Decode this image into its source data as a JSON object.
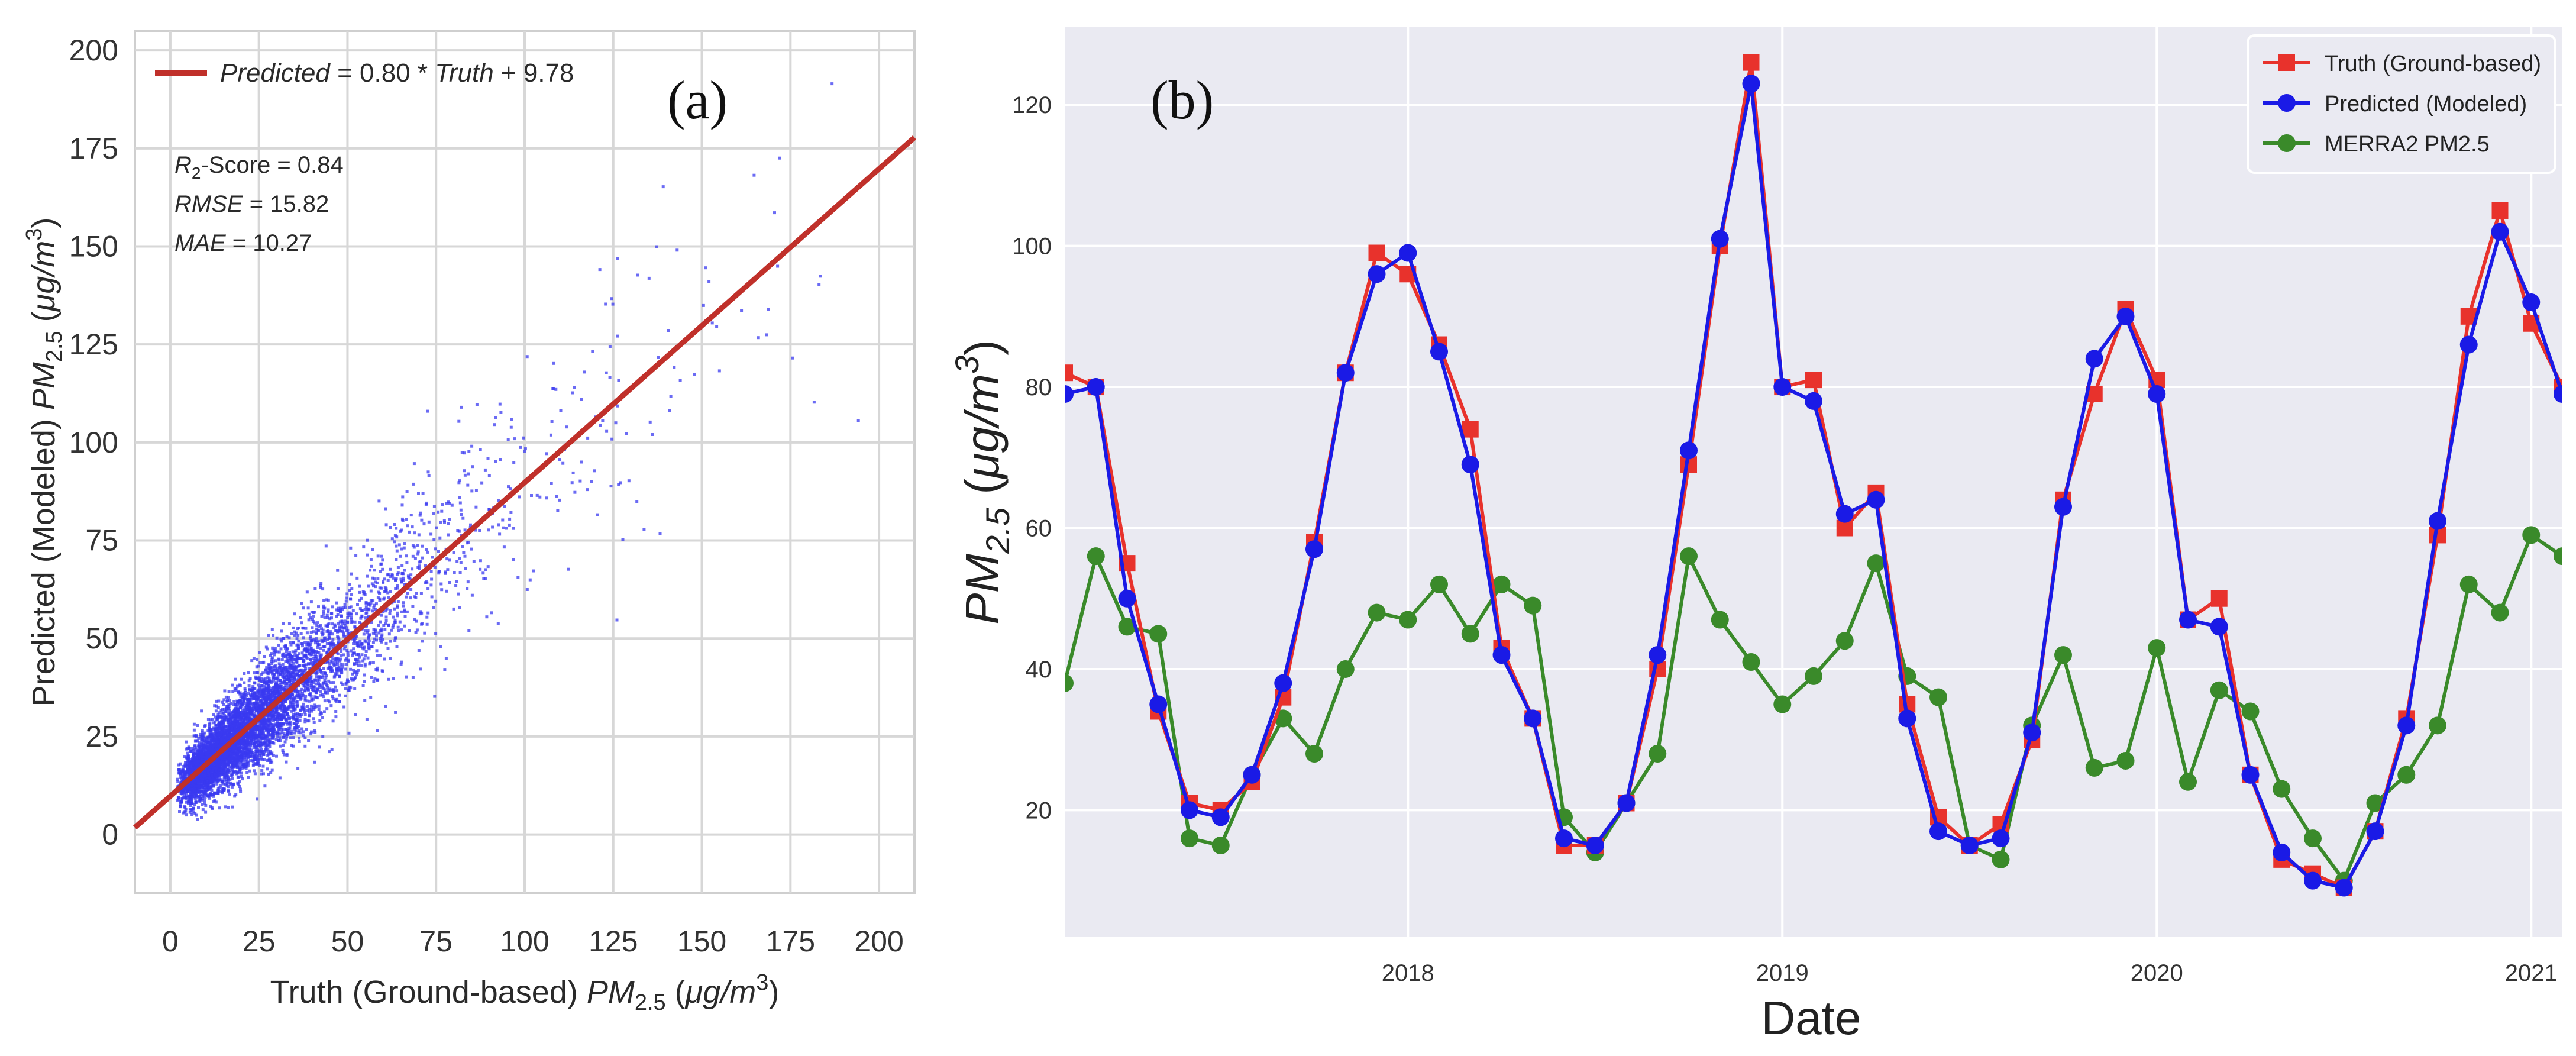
{
  "chart_data": [
    {
      "type": "scatter",
      "panel_label": "(a)",
      "title": "",
      "xlabel": "Truth (Ground-based) PM2.5 (μg/m3)",
      "xlabel_parts": {
        "pre": "Truth (Ground-based) ",
        "var": "PM",
        "sub": "2.5",
        "unit_pre": " (",
        "mu": "μ",
        "unit": "g/m",
        "sup": "3",
        "close": ")"
      },
      "ylabel": "Predicted (Modeled) PM2.5 (μg/m3)",
      "ylabel_parts": {
        "pre": "Predicted (Modeled) ",
        "var": "PM",
        "sub": "2.5",
        "unit_pre": " (",
        "mu": "μ",
        "unit": "g/m",
        "sup": "3",
        "close": ")"
      },
      "xlim": [
        -10,
        210
      ],
      "ylim": [
        -15,
        205
      ],
      "xticks": [
        0,
        25,
        50,
        75,
        100,
        125,
        150,
        175,
        200
      ],
      "yticks": [
        0,
        25,
        50,
        75,
        100,
        125,
        150,
        175,
        200
      ],
      "grid": true,
      "legend_position": "top-left",
      "colors": {
        "points": "#3a3af0",
        "fit": "#c0302a",
        "grid": "#d7d7d7",
        "axis": "#333333"
      },
      "fit_line": {
        "slope": 0.8,
        "intercept": 9.78
      },
      "legend": {
        "pre": "Predicted",
        "mid": " = 0.80 * ",
        "truth": "Truth",
        "post": " + 9.78"
      },
      "stats": [
        {
          "name": "R",
          "sub": "2",
          "rest": "-Score",
          "value": " = 0.84"
        },
        {
          "name": "RMSE",
          "sub": "",
          "rest": "",
          "value": " = 15.82"
        },
        {
          "name": "MAE",
          "sub": "",
          "rest": "",
          "value": "  = 10.27"
        }
      ],
      "sample_size_approx": 6000,
      "point_distribution": "dense cluster of ~6000 points along the fit line, truth 2–200, most between 5 and 60, spread grows with truth; predicted floor ~3"
    },
    {
      "type": "line",
      "panel_label": "(b)",
      "title": "",
      "xlabel": "Date",
      "ylabel": "PM2.5 (μg/m3)",
      "ylabel_parts": {
        "var": "PM",
        "sub": "2.5",
        "unit_pre": " (",
        "unit": "μg/m",
        "sup": "3",
        "close": ")"
      },
      "ylim": [
        2,
        131
      ],
      "yticks": [
        20,
        40,
        60,
        80,
        100,
        120
      ],
      "x_start": "2017-02",
      "x_step": "monthly",
      "xlim_months": [
        0,
        48
      ],
      "xtick_labels": [
        "2018",
        "2019",
        "2020",
        "2021"
      ],
      "xtick_months": [
        11,
        23,
        35,
        47
      ],
      "grid": true,
      "legend_position": "top-right",
      "colors": {
        "background": "#eaeaf2",
        "grid": "#ffffff"
      },
      "series": [
        {
          "name": "Truth (Ground-based)",
          "color": "#e8322c",
          "marker": "square",
          "values": [
            82,
            80,
            55,
            34,
            21,
            20,
            24,
            36,
            58,
            82,
            99,
            96,
            86,
            74,
            43,
            33,
            15,
            15,
            21,
            40,
            69,
            100,
            126,
            80,
            81,
            60,
            65,
            35,
            19,
            15,
            18,
            30,
            64,
            79,
            91,
            81,
            47,
            50,
            25,
            13,
            11,
            9,
            17,
            33,
            59,
            90,
            105,
            89,
            80
          ]
        },
        {
          "name": "Predicted (Modeled)",
          "color": "#1a1ae6",
          "marker": "circle",
          "values": [
            79,
            80,
            50,
            35,
            20,
            19,
            25,
            38,
            57,
            82,
            96,
            99,
            85,
            69,
            42,
            33,
            16,
            15,
            21,
            42,
            71,
            101,
            123,
            80,
            78,
            62,
            64,
            33,
            17,
            15,
            16,
            31,
            63,
            84,
            90,
            79,
            47,
            46,
            25,
            14,
            10,
            9,
            17,
            32,
            61,
            86,
            102,
            92,
            79
          ]
        },
        {
          "name": "MERRA2 PM2.5",
          "color": "#3a8a2a",
          "marker": "circle",
          "values": [
            38,
            56,
            46,
            45,
            16,
            15,
            25,
            33,
            28,
            40,
            48,
            47,
            52,
            45,
            52,
            49,
            19,
            14,
            21,
            28,
            56,
            47,
            41,
            35,
            39,
            44,
            55,
            39,
            36,
            15,
            13,
            32,
            42,
            26,
            27,
            43,
            24,
            37,
            34,
            23,
            16,
            10,
            21,
            25,
            32,
            52,
            48,
            59,
            56
          ]
        }
      ]
    }
  ]
}
